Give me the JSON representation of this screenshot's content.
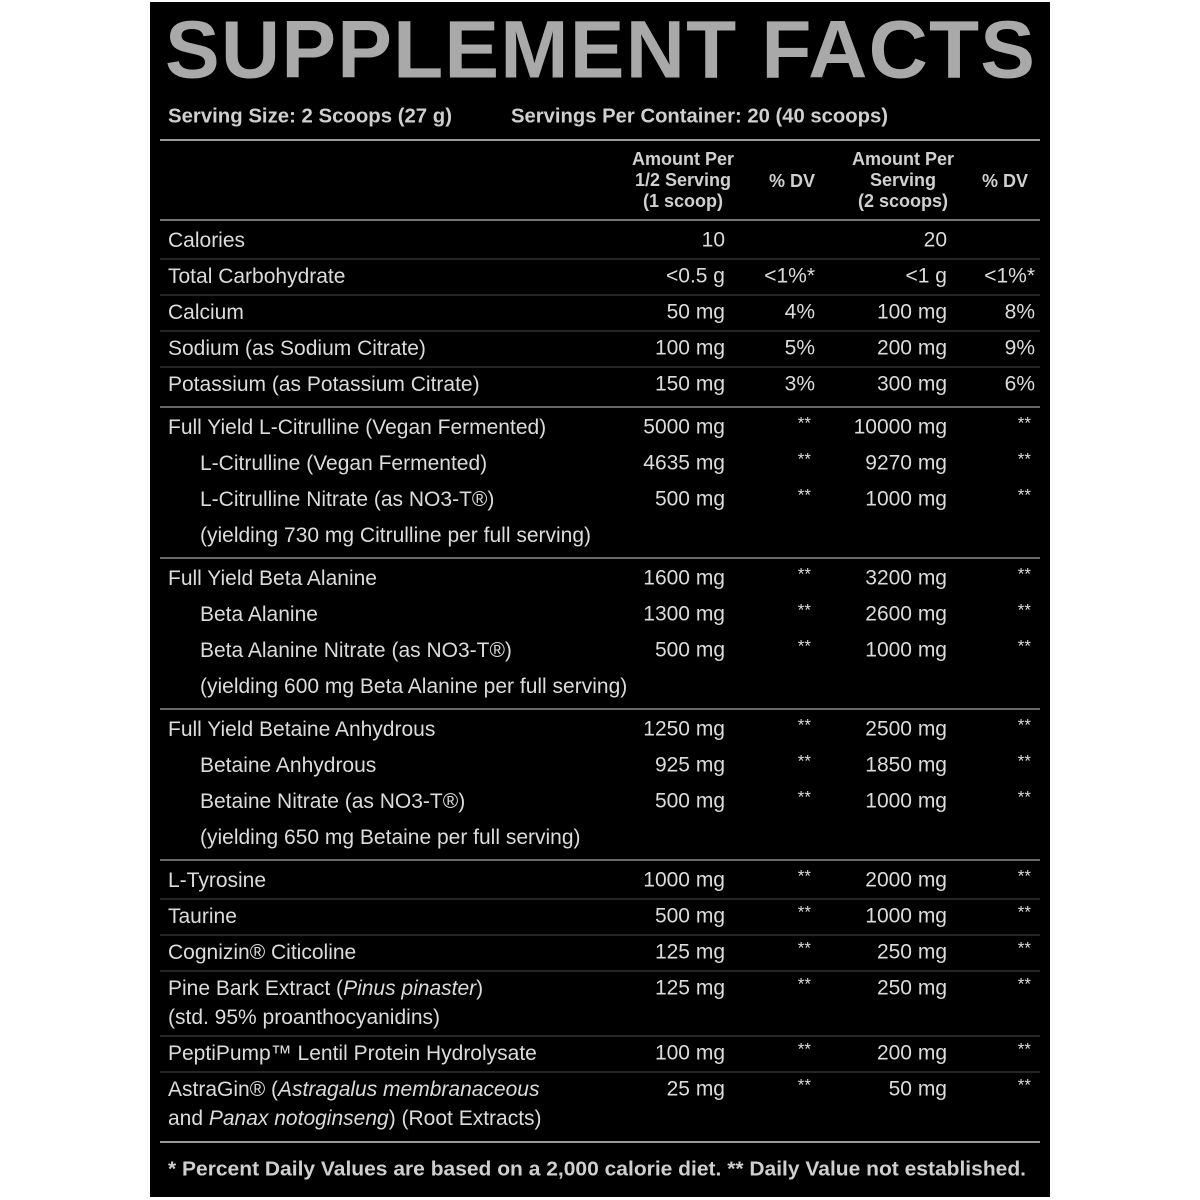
{
  "panel": {
    "title": "SUPPLEMENT FACTS",
    "serving_size": "Serving Size: 2 Scoops (27 g)",
    "servings_per_container": "Servings Per Container: 20 (40 scoops)",
    "column_headers": [
      [
        "Amount Per",
        "1/2 Serving",
        "(1 scoop)"
      ],
      [
        "% DV"
      ],
      [
        "Amount Per",
        "Serving",
        "(2 scoops)"
      ],
      [
        "% DV"
      ]
    ],
    "groups": [
      {
        "row_lines": true,
        "rows": [
          {
            "name": [
              [
                "Calories"
              ]
            ],
            "half_amount": "10",
            "full_amount": "20"
          },
          {
            "name": [
              [
                "Total Carbohydrate"
              ]
            ],
            "half_amount": "<0.5 g",
            "half_dv": "<1%*",
            "full_amount": "<1 g",
            "full_dv": "<1%*"
          },
          {
            "name": [
              [
                "Calcium"
              ]
            ],
            "half_amount": "50 mg",
            "half_dv": "4%",
            "full_amount": "100 mg",
            "full_dv": "8%"
          },
          {
            "name": [
              [
                "Sodium (as Sodium Citrate)"
              ]
            ],
            "half_amount": "100 mg",
            "half_dv": "5%",
            "full_amount": "200 mg",
            "full_dv": "9%"
          },
          {
            "name": [
              [
                "Potassium (as Potassium Citrate)"
              ]
            ],
            "half_amount": "150 mg",
            "half_dv": "3%",
            "full_amount": "300 mg",
            "full_dv": "6%"
          }
        ]
      },
      {
        "row_lines": false,
        "rows": [
          {
            "name": [
              [
                "Full Yield L-Citrulline (Vegan Fermented)"
              ]
            ],
            "half_amount": "5000 mg",
            "half_dv": "**",
            "full_amount": "10000 mg",
            "full_dv": "**"
          },
          {
            "indent": true,
            "name": [
              [
                "L-Citrulline (Vegan Fermented)"
              ]
            ],
            "half_amount": "4635 mg",
            "half_dv": "**",
            "full_amount": "9270 mg",
            "full_dv": "**"
          },
          {
            "indent": true,
            "name": [
              [
                "L-Citrulline Nitrate (as NO3-T®)"
              ]
            ],
            "half_amount": "500 mg",
            "half_dv": "**",
            "full_amount": "1000 mg",
            "full_dv": "**"
          },
          {
            "indent": true,
            "name": [
              [
                "(yielding 730 mg Citrulline per full serving)"
              ]
            ]
          }
        ]
      },
      {
        "row_lines": false,
        "rows": [
          {
            "name": [
              [
                "Full Yield Beta Alanine"
              ]
            ],
            "half_amount": "1600 mg",
            "half_dv": "**",
            "full_amount": "3200 mg",
            "full_dv": "**"
          },
          {
            "indent": true,
            "name": [
              [
                "Beta Alanine"
              ]
            ],
            "half_amount": "1300 mg",
            "half_dv": "**",
            "full_amount": "2600 mg",
            "full_dv": "**"
          },
          {
            "indent": true,
            "name": [
              [
                "Beta Alanine Nitrate (as NO3-T®)"
              ]
            ],
            "half_amount": "500 mg",
            "half_dv": "**",
            "full_amount": "1000 mg",
            "full_dv": "**"
          },
          {
            "indent": true,
            "name": [
              [
                "(yielding 600 mg Beta Alanine per full serving)"
              ]
            ]
          }
        ]
      },
      {
        "row_lines": false,
        "rows": [
          {
            "name": [
              [
                "Full Yield Betaine Anhydrous"
              ]
            ],
            "half_amount": "1250 mg",
            "half_dv": "**",
            "full_amount": "2500 mg",
            "full_dv": "**"
          },
          {
            "indent": true,
            "name": [
              [
                "Betaine Anhydrous"
              ]
            ],
            "half_amount": "925 mg",
            "half_dv": "**",
            "full_amount": "1850 mg",
            "full_dv": "**"
          },
          {
            "indent": true,
            "name": [
              [
                "Betaine Nitrate (as NO3-T®)"
              ]
            ],
            "half_amount": "500 mg",
            "half_dv": "**",
            "full_amount": "1000 mg",
            "full_dv": "**"
          },
          {
            "indent": true,
            "name": [
              [
                "(yielding 650 mg Betaine per full serving)"
              ]
            ]
          }
        ]
      },
      {
        "row_lines": true,
        "rows": [
          {
            "name": [
              [
                "L-Tyrosine"
              ]
            ],
            "half_amount": "1000 mg",
            "half_dv": "**",
            "full_amount": "2000 mg",
            "full_dv": "**"
          },
          {
            "name": [
              [
                "Taurine"
              ]
            ],
            "half_amount": "500 mg",
            "half_dv": "**",
            "full_amount": "1000 mg",
            "full_dv": "**"
          },
          {
            "name": [
              [
                "Cognizin® Citicoline"
              ]
            ],
            "half_amount": "125 mg",
            "half_dv": "**",
            "full_amount": "250 mg",
            "full_dv": "**"
          },
          {
            "name": [
              [
                "Pine Bark Extract (",
                {
                  "text": "Pinus pinaster",
                  "italic": true
                },
                ")"
              ],
              [
                "(std. 95% proanthocyanidins)"
              ]
            ],
            "half_amount": "125 mg",
            "half_dv": "**",
            "full_amount": "250 mg",
            "full_dv": "**"
          },
          {
            "name": [
              [
                "PeptiPump™ Lentil Protein Hydrolysate"
              ]
            ],
            "half_amount": "100 mg",
            "half_dv": "**",
            "full_amount": "200 mg",
            "full_dv": "**"
          },
          {
            "name": [
              [
                "AstraGin® (",
                {
                  "text": "Astragalus membranaceous",
                  "italic": true
                }
              ],
              [
                "and ",
                {
                  "text": "Panax notoginseng",
                  "italic": true
                },
                ") (Root Extracts)"
              ]
            ],
            "half_amount": "25 mg",
            "half_dv": "**",
            "full_amount": "50 mg",
            "full_dv": "**"
          }
        ]
      }
    ],
    "footnote": "* Percent Daily Values are based on a 2,000 calorie diet. ** Daily Value not established."
  }
}
